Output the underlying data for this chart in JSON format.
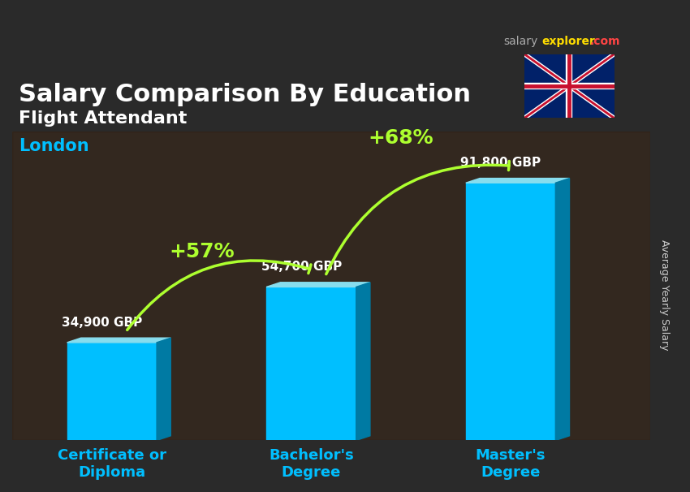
{
  "title_main": "Salary Comparison By Education",
  "subtitle1": "Flight Attendant",
  "subtitle2": "London",
  "ylabel_rotated": "Average Yearly Salary",
  "categories": [
    "Certificate or\nDiploma",
    "Bachelor's\nDegree",
    "Master's\nDegree"
  ],
  "values": [
    34900,
    54700,
    91800
  ],
  "value_labels": [
    "34,900 GBP",
    "54,700 GBP",
    "91,800 GBP"
  ],
  "pct_labels": [
    "+57%",
    "+68%"
  ],
  "bar_color_main": "#00BFFF",
  "bar_color_dark": "#007AA3",
  "bar_color_light": "#87DDEE",
  "bg_color": "#3a3a3a",
  "title_color": "#FFFFFF",
  "subtitle1_color": "#FFFFFF",
  "subtitle2_color": "#00BFFF",
  "value_label_color": "#FFFFFF",
  "pct_color": "#ADFF2F",
  "arrow_color": "#ADFF2F",
  "xtick_color": "#00BFFF",
  "ylabel_color": "#CCCCCC",
  "brand_salary_color": "#AAAAAA",
  "brand_explorer_color": "#FFFF00",
  "brand_com_color": "#FF4444",
  "ylim": [
    0,
    110000
  ],
  "bar_width": 0.45
}
